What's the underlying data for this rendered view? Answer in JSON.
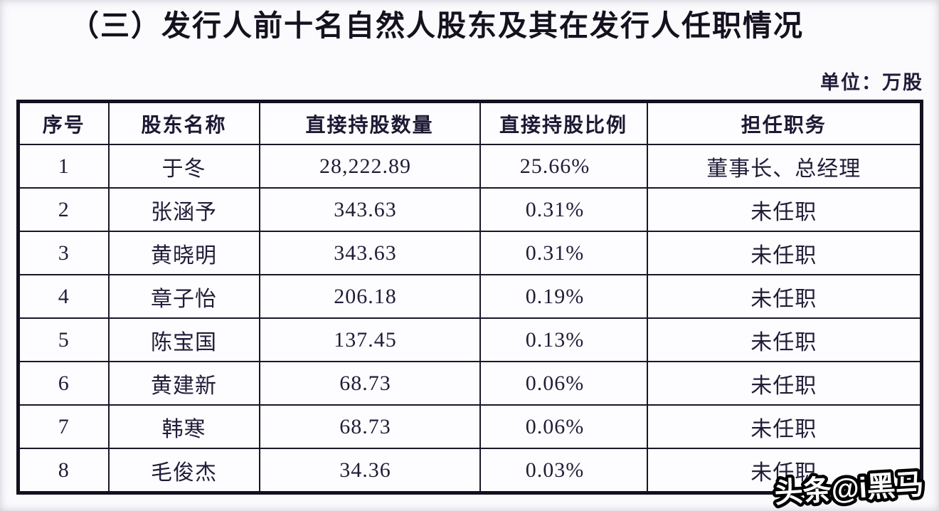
{
  "document": {
    "section_title": "（三）发行人前十名自然人股东及其在发行人任职情况",
    "unit_label": "单位：万股",
    "watermark": "头条@i黑马"
  },
  "table": {
    "columns": [
      "序号",
      "股东名称",
      "直接持股数量",
      "直接持股比例",
      "担任职务"
    ],
    "rows": [
      {
        "no": "1",
        "name": "于冬",
        "shares": "28,222.89",
        "ratio": "25.66%",
        "position": "董事长、总经理"
      },
      {
        "no": "2",
        "name": "张涵予",
        "shares": "343.63",
        "ratio": "0.31%",
        "position": "未任职"
      },
      {
        "no": "3",
        "name": "黄晓明",
        "shares": "343.63",
        "ratio": "0.31%",
        "position": "未任职"
      },
      {
        "no": "4",
        "name": "章子怡",
        "shares": "206.18",
        "ratio": "0.19%",
        "position": "未任职"
      },
      {
        "no": "5",
        "name": "陈宝国",
        "shares": "137.45",
        "ratio": "0.13%",
        "position": "未任职"
      },
      {
        "no": "6",
        "name": "黄建新",
        "shares": "68.73",
        "ratio": "0.06%",
        "position": "未任职"
      },
      {
        "no": "7",
        "name": "韩寒",
        "shares": "68.73",
        "ratio": "0.06%",
        "position": "未任职"
      },
      {
        "no": "8",
        "name": "毛俊杰",
        "shares": "34.36",
        "ratio": "0.03%",
        "position": "未任职"
      }
    ]
  },
  "colors": {
    "text": "#211c38",
    "border": "#14101f",
    "background": "#fbfbfd",
    "watermark_fill": "#ffffff",
    "watermark_outline": "#000000"
  }
}
